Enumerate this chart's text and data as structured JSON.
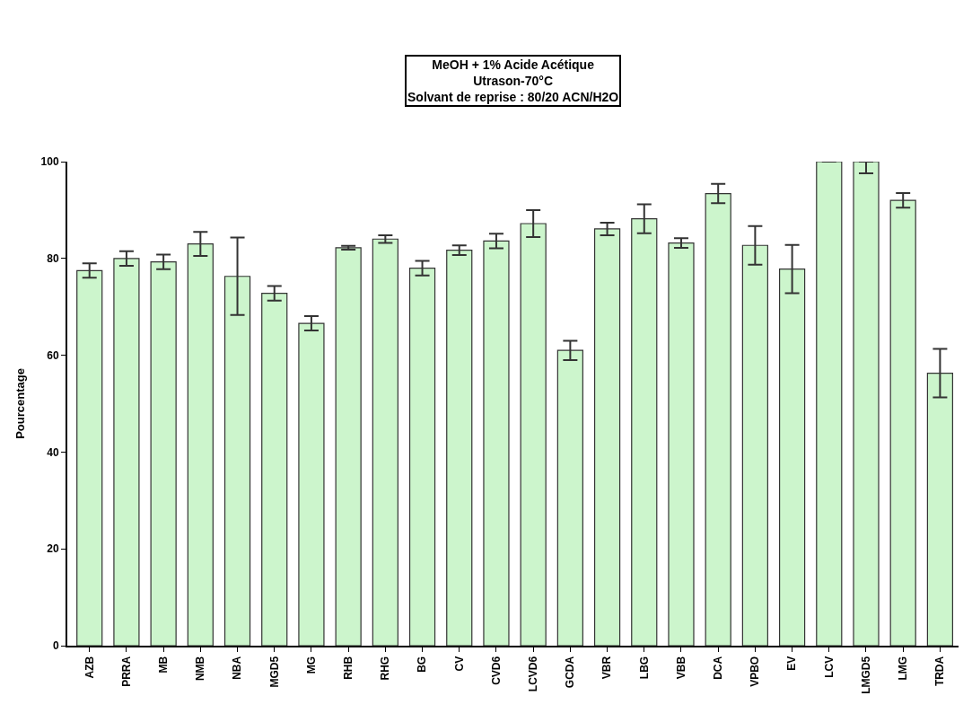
{
  "chart_data": {
    "type": "bar",
    "title": "MeOH + 1% Acide Acétique\nUtrason-70°C\nSolvant de reprise : 80/20 ACN/H2O",
    "ylabel": "Pourcentage",
    "categories": [
      "AZB",
      "PRRA",
      "MB",
      "NMB",
      "NBA",
      "MGD5",
      "MG",
      "RHB",
      "RHG",
      "BG",
      "CV",
      "CVD6",
      "LCVD6",
      "GCDA",
      "VBR",
      "LBG",
      "VBB",
      "DCA",
      "VPBO",
      "EV",
      "LCV",
      "LMGD5",
      "LMG",
      "TRDA"
    ],
    "values": [
      77.5,
      80,
      79.3,
      83,
      76.3,
      72.8,
      66.6,
      82.2,
      84,
      78,
      81.7,
      83.6,
      87.2,
      61,
      86.1,
      88.2,
      83.2,
      93.4,
      82.7,
      77.8,
      100,
      100,
      92,
      56.3
    ],
    "errors": [
      1.5,
      1.5,
      1.5,
      2.5,
      8,
      1.5,
      1.5,
      0.4,
      0.8,
      1.5,
      1,
      1.5,
      2.8,
      2,
      1.3,
      3,
      1,
      2,
      4,
      5,
      null,
      [
        97.6,
        100
      ],
      1.5,
      5
    ],
    "color": "#ccf5cc",
    "ylim": [
      0,
      100
    ],
    "yticks": [
      0,
      20,
      40,
      60,
      80,
      100
    ],
    "legend": false
  }
}
